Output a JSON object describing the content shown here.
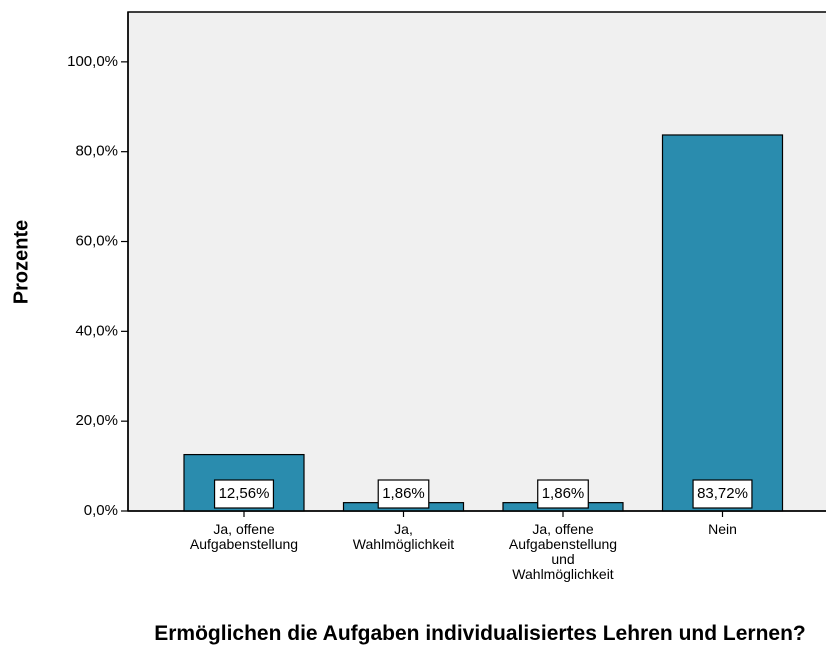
{
  "chart_data": {
    "type": "bar",
    "title": "Ermöglichen die Aufgaben individualisiertes Lehren und Lernen?",
    "y_label": "Prozente",
    "categories": [
      "Ja, offene Aufgabenstellung",
      "Ja, Wahlmöglichkeit",
      "Ja, offene Aufgabenstellung und Wahlmöglichkeit",
      "Nein"
    ],
    "values": [
      12.56,
      1.86,
      1.86,
      83.72
    ],
    "value_labels": [
      "12,56%",
      "1,86%",
      "1,86%",
      "83,72%"
    ],
    "color": "#2a8cae",
    "ylim": [
      0,
      111.1
    ],
    "yticks": [
      {
        "value": 0,
        "label": "0,0%"
      },
      {
        "value": 20,
        "label": "20,0%"
      },
      {
        "value": 40,
        "label": "40,0%"
      },
      {
        "value": 60,
        "label": "60,0%"
      },
      {
        "value": 80,
        "label": "80,0%"
      },
      {
        "value": 100,
        "label": "100,0%"
      }
    ]
  }
}
